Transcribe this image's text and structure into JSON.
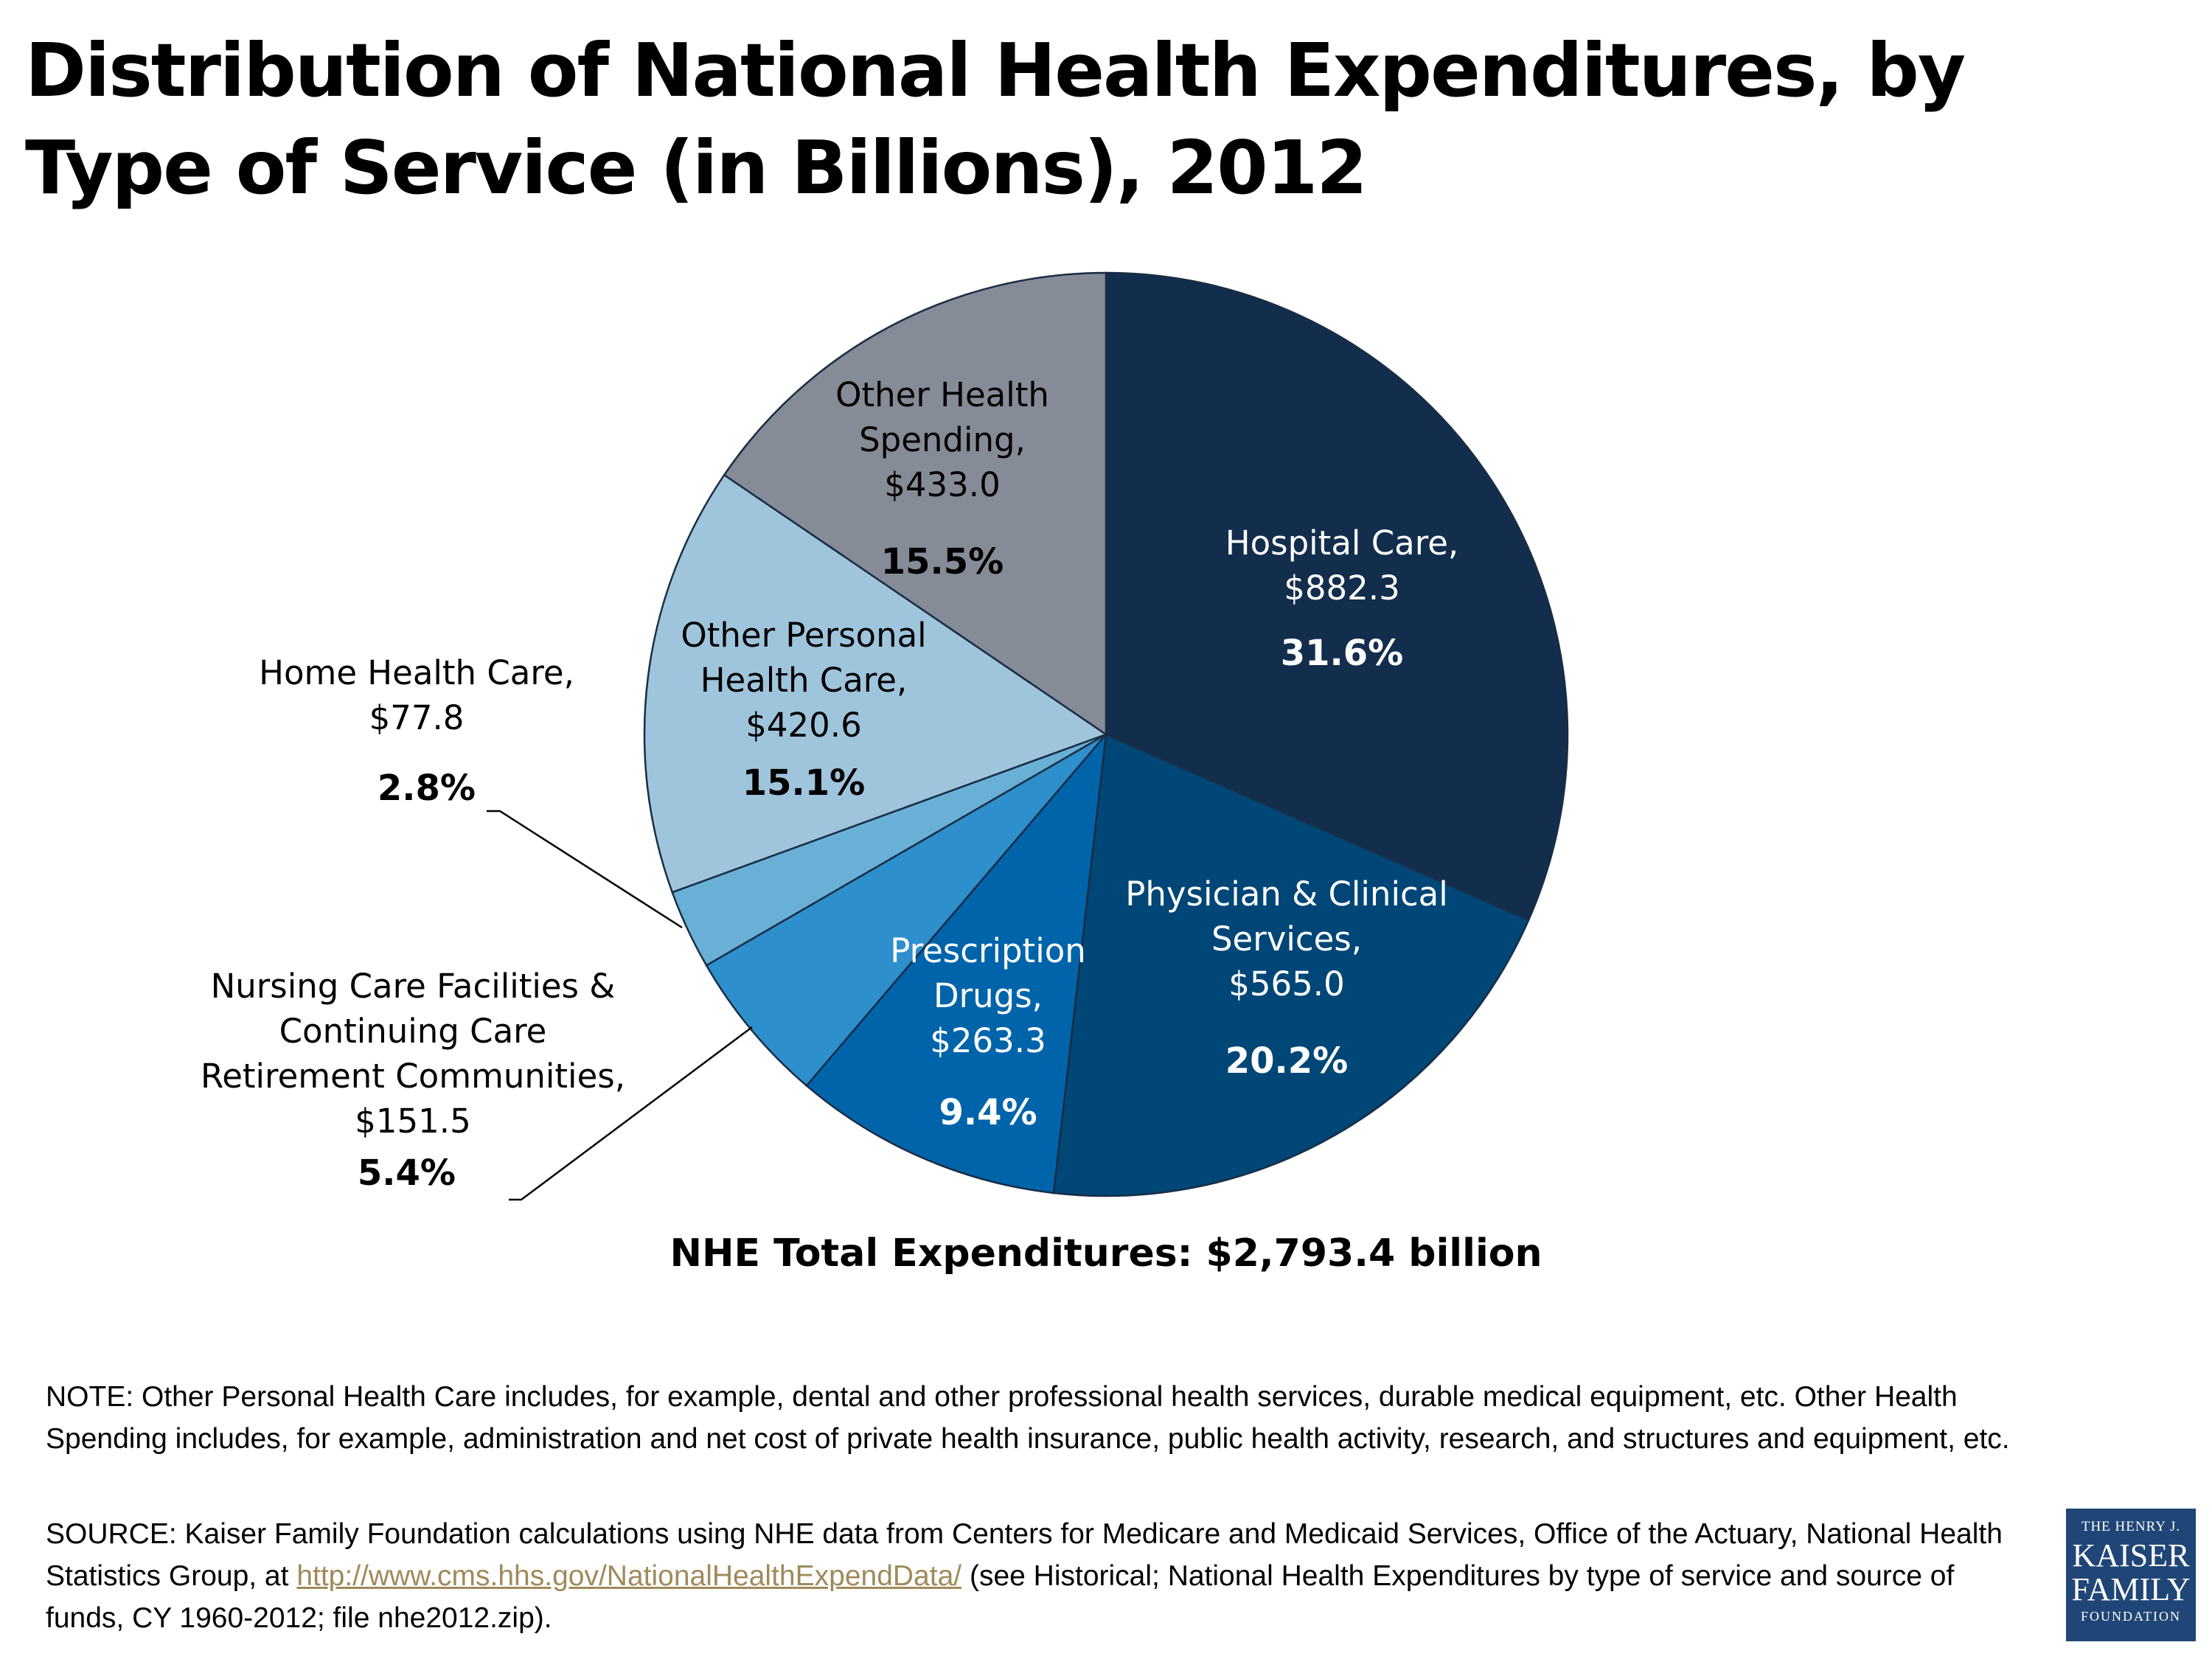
{
  "page": {
    "title": "Distribution of National Health Expenditures, by Type of Service (in Billions), 2012",
    "total_label": "NHE Total Expenditures: $2,793.4 billion",
    "note": "NOTE: Other Personal Health Care includes, for example, dental and other professional health services, durable medical equipment, etc. Other Health Spending includes, for example, administration and net cost of private health insurance, public health activity, research, and structures and equipment, etc.",
    "source_prefix": "SOURCE: Kaiser Family Foundation calculations using NHE data from Centers for Medicare and Medicaid Services, Office of the Actuary, National Health Statistics Group, at ",
    "source_link": "http://www.cms.hhs.gov/NationalHealthExpendData/",
    "source_suffix": " (see Historical; National Health Expenditures by type of service and source of funds, CY 1960-2012; file nhe2012.zip).",
    "logo": {
      "line1": "THE HENRY J.",
      "line2": "KAISER",
      "line3": "FAMILY",
      "line4": "FOUNDATION"
    }
  },
  "chart_data": {
    "type": "pie",
    "title": "Distribution of National Health Expenditures, by Type of Service (in Billions), 2012",
    "unit": "billions of dollars",
    "total": 2793.4,
    "slices": [
      {
        "name": "Hospital Care",
        "label_lines": [
          "Hospital Care,",
          "$882.3"
        ],
        "value": 882.3,
        "percent": "31.6%",
        "color": "#132d4d",
        "text_color": "#ffffff"
      },
      {
        "name": "Physician & Clinical Services",
        "label_lines": [
          "Physician & Clinical",
          "Services,",
          "$565.0"
        ],
        "value": 565.0,
        "percent": "20.2%",
        "color": "#004677",
        "text_color": "#ffffff"
      },
      {
        "name": "Prescription Drugs",
        "label_lines": [
          "Prescription",
          "Drugs,",
          "$263.3"
        ],
        "value": 263.3,
        "percent": "9.4%",
        "color": "#0064ab",
        "text_color": "#ffffff"
      },
      {
        "name": "Nursing Care Facilities & Continuing Care Retirement Communities",
        "label_lines": [
          "Nursing Care Facilities &",
          "Continuing Care",
          "Retirement Communities,",
          "$151.5"
        ],
        "value": 151.5,
        "percent": "5.4%",
        "color": "#2d8fcc",
        "text_color": "#000000"
      },
      {
        "name": "Home Health Care",
        "label_lines": [
          "Home Health Care,",
          "$77.8"
        ],
        "value": 77.8,
        "percent": "2.8%",
        "color": "#68b0d6",
        "text_color": "#000000"
      },
      {
        "name": "Other Personal Health Care",
        "label_lines": [
          "Other Personal",
          "Health Care,",
          "$420.6"
        ],
        "value": 420.6,
        "percent": "15.1%",
        "color": "#9fc5dc",
        "text_color": "#000000"
      },
      {
        "name": "Other Health Spending",
        "label_lines": [
          "Other Health",
          "Spending,",
          "$433.0"
        ],
        "value": 433.0,
        "percent": "15.5%",
        "color": "#858b97",
        "text_color": "#000000"
      }
    ]
  }
}
